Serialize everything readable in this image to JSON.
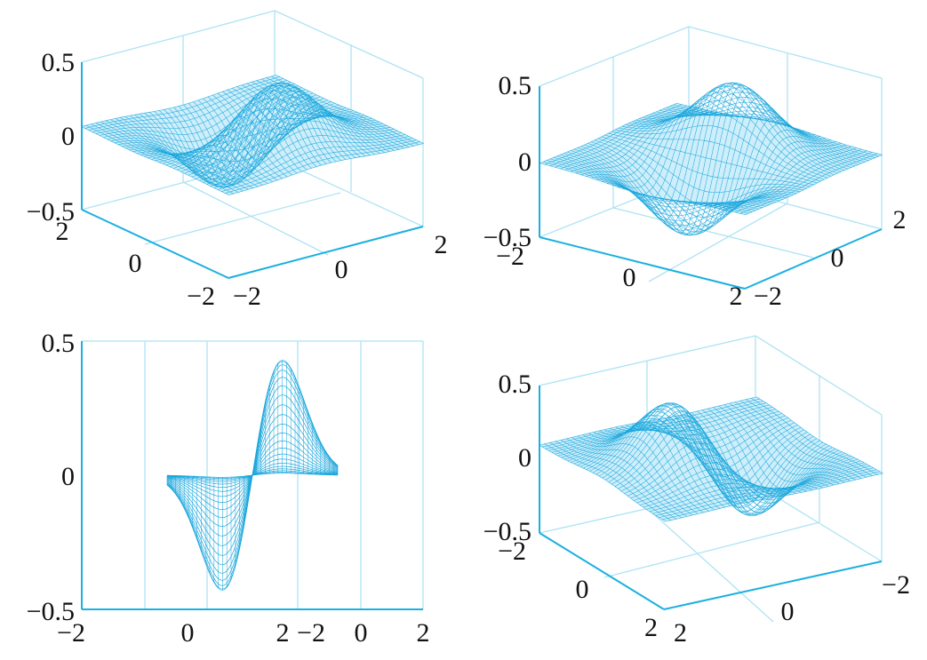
{
  "colors": {
    "axis": "#1bb0e0",
    "box": "#aee3f3",
    "mesh": "#1aa6dc",
    "face": "#cdeefa"
  },
  "chart_data": [
    {
      "type": "surface",
      "view": "3d-oblique-a",
      "function": "z = x*exp(-(x^2+y^2))",
      "x_range": [
        -2,
        2
      ],
      "y_range": [
        -2,
        2
      ],
      "z_range": [
        -0.5,
        0.5
      ],
      "z_ticks": [
        "0.5",
        "0",
        "−0.5"
      ],
      "left_ticks": [
        "2",
        "0",
        "−2"
      ],
      "right_ticks": [
        "−2",
        "0",
        "2"
      ]
    },
    {
      "type": "surface",
      "view": "3d-oblique-b",
      "function": "z = x*exp(-(x^2+y^2))",
      "x_range": [
        -2,
        2
      ],
      "y_range": [
        -2,
        2
      ],
      "z_range": [
        -0.5,
        0.5
      ],
      "z_ticks": [
        "0.5",
        "0",
        "−0.5"
      ],
      "left_ticks": [
        "−2",
        "0",
        "2"
      ],
      "right_ticks": [
        "−2",
        "0",
        "2"
      ]
    },
    {
      "type": "surface",
      "view": "side",
      "function": "z = x*exp(-(x^2+y^2))",
      "x_range": [
        -2,
        2
      ],
      "y_range": [
        -2,
        2
      ],
      "z_range": [
        -0.5,
        0.5
      ],
      "z_ticks": [
        "0.5",
        "0",
        "−0.5"
      ],
      "left_ticks": [
        "−2",
        "0",
        "2"
      ],
      "right_ticks": [
        "−2",
        "0",
        "2"
      ]
    },
    {
      "type": "surface",
      "view": "3d-oblique-c",
      "function": "z = x*exp(-(x^2+y^2))",
      "x_range": [
        -2,
        2
      ],
      "y_range": [
        -2,
        2
      ],
      "z_range": [
        -0.5,
        0.5
      ],
      "z_ticks": [
        "0.5",
        "0",
        "−0.5"
      ],
      "left_ticks": [
        "−2",
        "0",
        "2"
      ],
      "right_ticks": [
        "−2",
        "0",
        "2"
      ]
    }
  ]
}
